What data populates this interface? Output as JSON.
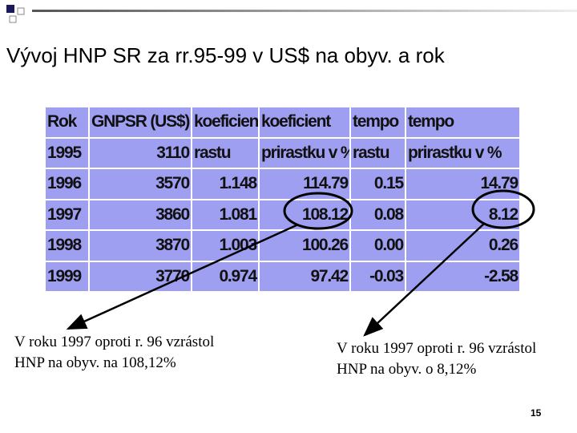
{
  "title": "Vývoj HNP SR za rr.95-99 v US$ na obyv. a rok",
  "table": {
    "rows": [
      [
        "Rok",
        "GNPSR (US$)",
        "koeficient",
        "koeficient",
        "tempo",
        "tempo"
      ],
      [
        "1995",
        "3110",
        "rastu",
        "prirastku v %",
        "rastu",
        "prirastku v %"
      ],
      [
        "1996",
        "3570",
        "1.148",
        "114.79",
        "0.15",
        "14.79"
      ],
      [
        "1997",
        "3860",
        "1.081",
        "108.12",
        "0.08",
        "8.12"
      ],
      [
        "1998",
        "3870",
        "1.003",
        "100.26",
        "0.00",
        "0.26"
      ],
      [
        "1999",
        "3770",
        "0.974",
        "97.42",
        "-0.03",
        "-2.58"
      ]
    ]
  },
  "notes": [
    "V roku 1997 oproti r. 96 vzrástol HNP na obyv. na 108,12%",
    "V roku 1997 oproti r. 96 vzrástol HNP na obyv. o 8,12%"
  ],
  "page_number": "15"
}
